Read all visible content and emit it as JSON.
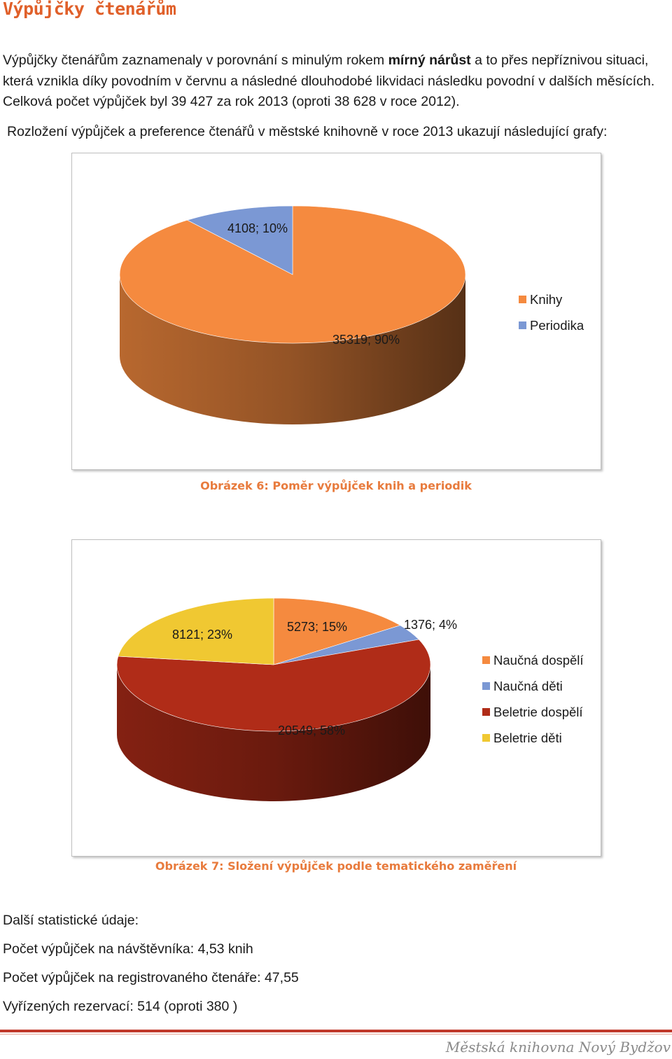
{
  "title": "Výpůjčky čtenářům",
  "intro": {
    "part1": "Výpůjčky čtenářům zaznamenaly v porovnání s minulým rokem ",
    "bold": "mírný nárůst",
    "part2": " a to přes nepříznivou situaci, která vznikla díky povodním v červnu a následné dlouhodobé likvidaci následku povodní v dalších měsících. Celková počet výpůjček byl 39 427 za rok 2013 (oproti 38 628 v roce 2012)."
  },
  "intro2": "Rozložení výpůjček a preference čtenářů v městské knihovně v roce 2013 ukazují následující grafy:",
  "chart_data": [
    {
      "type": "pie",
      "title": "",
      "caption": "Obrázek 6: Poměr výpůjček knih a periodik",
      "slices": [
        {
          "name": "Knihy",
          "value": 35319,
          "percent": 90,
          "color": "#f58a3f",
          "label": "35319; 90%"
        },
        {
          "name": "Periodika",
          "value": 4108,
          "percent": 10,
          "color": "#7b98d4",
          "label": "4108; 10%"
        }
      ],
      "legend": "right"
    },
    {
      "type": "pie",
      "title": "",
      "caption": "Obrázek 7: Složení výpůjček podle tematického zaměření",
      "slices": [
        {
          "name": "Naučná dospělí",
          "value": 5273,
          "percent": 15,
          "color": "#f58a3f",
          "label": "5273; 15%"
        },
        {
          "name": "Naučná děti",
          "value": 1376,
          "percent": 4,
          "color": "#7b98d4",
          "label": "1376; 4%"
        },
        {
          "name": "Beletrie dospělí",
          "value": 20549,
          "percent": 58,
          "color": "#b02c18",
          "label": "20549; 58%"
        },
        {
          "name": "Beletrie děti",
          "value": 8121,
          "percent": 23,
          "color": "#f0c832",
          "label": "8121; 23%"
        }
      ],
      "legend": "right"
    }
  ],
  "stats": {
    "heading": "Další statistické údaje:",
    "line1": "Počet výpůjček na návštěvníka: 4,53 knih",
    "line2": "Počet výpůjček na registrovaného čtenáře: 47,55",
    "line3": "Vyřízených rezervací: 514 (oproti 380 )"
  },
  "footer": "Městská knihovna Nový Bydžov"
}
